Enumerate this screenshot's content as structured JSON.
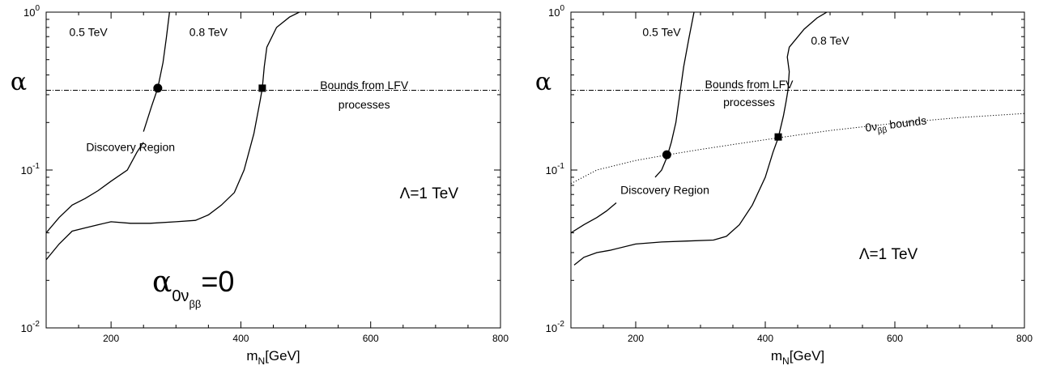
{
  "chart_data": [
    {
      "type": "line",
      "xlabel": "m",
      "xlabel_sub": "N",
      "xlabel_unit": "[GeV]",
      "ylabel": "α",
      "xlim": [
        100,
        800
      ],
      "ylim": [
        0.01,
        1
      ],
      "yscale": "log",
      "xticks": [
        200,
        400,
        600,
        800
      ],
      "yticks": [
        {
          "value": 0.01,
          "base": "10",
          "exp": "-2"
        },
        {
          "value": 0.1,
          "base": "10",
          "exp": "-1"
        },
        {
          "value": 1,
          "base": "10",
          "exp": "0"
        }
      ],
      "series": [
        {
          "name": "0.5 TeV",
          "style": "solid",
          "segments": [
            [
              [
                100,
                0.04
              ],
              [
                120,
                0.05
              ],
              [
                140,
                0.06
              ],
              [
                160,
                0.066
              ],
              [
                180,
                0.074
              ],
              [
                200,
                0.085
              ],
              [
                225,
                0.1
              ],
              [
                240,
                0.13
              ],
              [
                250,
                0.15
              ]
            ],
            [
              [
                250,
                0.175
              ],
              [
                262,
                0.25
              ],
              [
                272,
                0.33
              ],
              [
                280,
                0.48
              ],
              [
                285,
                0.68
              ],
              [
                290,
                1.0
              ]
            ]
          ]
        },
        {
          "name": "0.8 TeV",
          "style": "solid",
          "segments": [
            [
              [
                100,
                0.027
              ],
              [
                120,
                0.034
              ],
              [
                140,
                0.041
              ],
              [
                160,
                0.043
              ],
              [
                180,
                0.045
              ],
              [
                200,
                0.047
              ],
              [
                230,
                0.046
              ],
              [
                260,
                0.046
              ],
              [
                300,
                0.047
              ],
              [
                330,
                0.048
              ],
              [
                350,
                0.052
              ],
              [
                370,
                0.06
              ],
              [
                390,
                0.072
              ],
              [
                405,
                0.1
              ],
              [
                420,
                0.17
              ],
              [
                430,
                0.28
              ],
              [
                433,
                0.33
              ],
              [
                436,
                0.45
              ],
              [
                440,
                0.6
              ],
              [
                455,
                0.8
              ],
              [
                475,
                0.93
              ],
              [
                490,
                1.0
              ]
            ]
          ]
        },
        {
          "name": "Bounds from LFV processes",
          "style": "dashdot",
          "segments": [
            [
              [
                100,
                0.32
              ],
              [
                800,
                0.32
              ]
            ]
          ]
        }
      ],
      "markers": [
        {
          "shape": "circle",
          "x": 272,
          "y": 0.33
        },
        {
          "shape": "square",
          "x": 433,
          "y": 0.33
        }
      ],
      "annotations": [
        {
          "text": "0.5 TeV",
          "x": 165,
          "y": 0.75
        },
        {
          "text": "0.8 TeV",
          "x": 350,
          "y": 0.75
        },
        {
          "text": "Bounds from LFV",
          "x": 590,
          "y": 0.345
        },
        {
          "text": "processes",
          "x": 590,
          "y": 0.26
        },
        {
          "text": "Discovery Region",
          "x": 230,
          "y": 0.14
        },
        {
          "text": "Λ=1 TeV",
          "x": 690,
          "y": 0.07
        }
      ],
      "big_label": {
        "base": "α",
        "sub": "0ν",
        "subsub": "ββ",
        "rest": "=0"
      }
    },
    {
      "type": "line",
      "xlabel": "m",
      "xlabel_sub": "N",
      "xlabel_unit": "[GeV]",
      "ylabel": "α",
      "xlim": [
        100,
        800
      ],
      "ylim": [
        0.01,
        1
      ],
      "yscale": "log",
      "xticks": [
        200,
        400,
        600,
        800
      ],
      "yticks": [
        {
          "value": 0.01,
          "base": "10",
          "exp": "-2"
        },
        {
          "value": 0.1,
          "base": "10",
          "exp": "-1"
        },
        {
          "value": 1,
          "base": "10",
          "exp": "0"
        }
      ],
      "series": [
        {
          "name": "0.5 TeV",
          "style": "solid",
          "segments": [
            [
              [
                100,
                0.04
              ],
              [
                120,
                0.045
              ],
              [
                140,
                0.05
              ],
              [
                155,
                0.055
              ],
              [
                170,
                0.062
              ]
            ],
            [
              [
                230,
                0.09
              ],
              [
                240,
                0.1
              ],
              [
                248,
                0.12
              ],
              [
                255,
                0.15
              ],
              [
                262,
                0.2
              ],
              [
                268,
                0.3
              ],
              [
                274,
                0.45
              ],
              [
                282,
                0.68
              ],
              [
                290,
                1.0
              ]
            ]
          ]
        },
        {
          "name": "0.8 TeV",
          "style": "solid",
          "segments": [
            [
              [
                105,
                0.025
              ],
              [
                120,
                0.028
              ],
              [
                140,
                0.03
              ],
              [
                160,
                0.031
              ],
              [
                200,
                0.034
              ],
              [
                240,
                0.035
              ],
              [
                280,
                0.0355
              ],
              [
                320,
                0.036
              ],
              [
                340,
                0.038
              ],
              [
                360,
                0.045
              ],
              [
                380,
                0.06
              ],
              [
                400,
                0.09
              ],
              [
                412,
                0.13
              ],
              [
                420,
                0.16
              ],
              [
                428,
                0.22
              ],
              [
                432,
                0.27
              ],
              [
                435,
                0.32
              ],
              [
                437,
                0.42
              ],
              [
                434,
                0.52
              ],
              [
                437,
                0.6
              ],
              [
                460,
                0.78
              ],
              [
                480,
                0.92
              ],
              [
                495,
                1.0
              ]
            ]
          ]
        },
        {
          "name": "Bounds from LFV processes",
          "style": "dashdot",
          "segments": [
            [
              [
                100,
                0.32
              ],
              [
                800,
                0.32
              ]
            ]
          ]
        },
        {
          "name": "0νββ bounds",
          "style": "dotted",
          "segments": [
            [
              [
                100,
                0.082
              ],
              [
                140,
                0.1
              ],
              [
                200,
                0.115
              ],
              [
                250,
                0.125
              ],
              [
                300,
                0.135
              ],
              [
                350,
                0.145
              ],
              [
                420,
                0.16
              ],
              [
                500,
                0.178
              ],
              [
                600,
                0.198
              ],
              [
                700,
                0.215
              ],
              [
                800,
                0.228
              ]
            ]
          ]
        }
      ],
      "markers": [
        {
          "shape": "circle",
          "x": 248,
          "y": 0.125
        },
        {
          "shape": "square",
          "x": 420,
          "y": 0.162
        }
      ],
      "annotations": [
        {
          "text": "0.5 TeV",
          "x": 240,
          "y": 0.75
        },
        {
          "text": "0.8 TeV",
          "x": 500,
          "y": 0.66
        },
        {
          "text": "Bounds from LFV",
          "x": 375,
          "y": 0.35
        },
        {
          "text": "processes",
          "x": 375,
          "y": 0.27
        },
        {
          "text": "Discovery Region",
          "x": 245,
          "y": 0.075
        },
        {
          "text": "Λ=1 TeV",
          "x": 590,
          "y": 0.029
        }
      ],
      "rotated_label": {
        "base": "0ν",
        "sub": "ββ",
        "rest": " bounds",
        "x": 555,
        "y": 0.175,
        "angle": -7
      }
    }
  ]
}
